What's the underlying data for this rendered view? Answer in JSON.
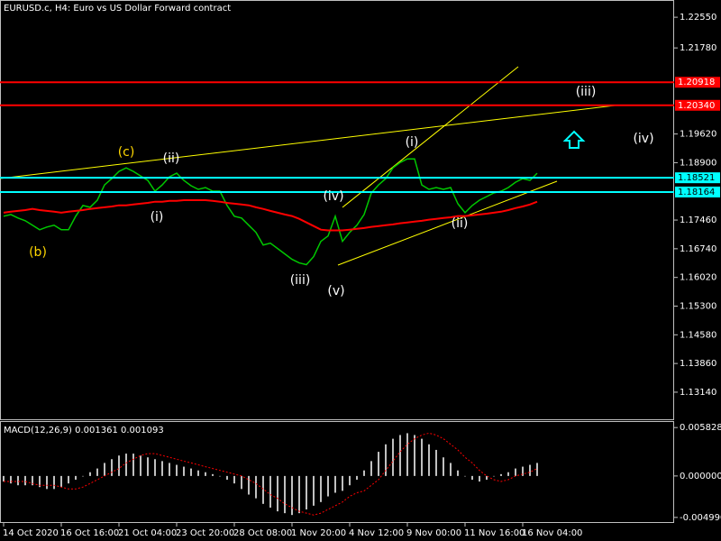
{
  "chart_data": [
    {
      "type": "line",
      "title": "EURUSD.c, H4:  Euro vs US Dollar Forward contract",
      "ylim": [
        1.1246,
        1.2296
      ],
      "yticks": [
        {
          "value": 1.2255,
          "label": "1.22550"
        },
        {
          "value": 1.2178,
          "label": "1.21780"
        },
        {
          "value": 1.1962,
          "label": "1.19620"
        },
        {
          "value": 1.189,
          "label": "1.18900"
        },
        {
          "value": 1.1746,
          "label": "1.17460"
        },
        {
          "value": 1.1674,
          "label": "1.16740"
        },
        {
          "value": 1.1602,
          "label": "1.16020"
        },
        {
          "value": 1.153,
          "label": "1.15300"
        },
        {
          "value": 1.1458,
          "label": "1.14580"
        },
        {
          "value": 1.1386,
          "label": "1.13860"
        },
        {
          "value": 1.1314,
          "label": "1.13140"
        }
      ],
      "grid": false,
      "series": [
        {
          "color": "#00c800",
          "values": [
            1.17555,
            1.176,
            1.1751,
            1.17442,
            1.1733,
            1.17217,
            1.17285,
            1.1733,
            1.17217,
            1.17217,
            1.17555,
            1.17825,
            1.1778,
            1.1796,
            1.18342,
            1.185,
            1.1868,
            1.1877,
            1.1868,
            1.18567,
            1.18455,
            1.18185,
            1.18342,
            1.18545,
            1.18635,
            1.18455,
            1.1832,
            1.1823,
            1.18275,
            1.18185,
            1.18185,
            1.17825,
            1.17555,
            1.1751,
            1.1733,
            1.1715,
            1.16835,
            1.1688,
            1.16745,
            1.1661,
            1.16475,
            1.16385,
            1.1634,
            1.16542,
            1.16925,
            1.1706,
            1.17555,
            1.16925,
            1.1715,
            1.1733,
            1.176,
            1.1814,
            1.18342,
            1.185,
            1.1877,
            1.18905,
            1.18995,
            1.18995,
            1.18342,
            1.1823,
            1.18275,
            1.1823,
            1.18275,
            1.1787,
            1.17645,
            1.17825,
            1.1796,
            1.1805,
            1.1814,
            1.18185,
            1.18275,
            1.1841,
            1.185,
            1.18455,
            1.18635
          ]
        },
        {
          "color": "#ff0000",
          "values": [
            1.17645,
            1.1767,
            1.1769,
            1.1771,
            1.1774,
            1.1771,
            1.1769,
            1.1767,
            1.17645,
            1.1767,
            1.1769,
            1.1771,
            1.1774,
            1.1776,
            1.1778,
            1.178,
            1.1783,
            1.1783,
            1.1785,
            1.1787,
            1.1789,
            1.1792,
            1.1792,
            1.1794,
            1.1794,
            1.1796,
            1.1796,
            1.1796,
            1.1796,
            1.1794,
            1.1792,
            1.1789,
            1.1787,
            1.1785,
            1.1783,
            1.1778,
            1.1774,
            1.1769,
            1.17645,
            1.176,
            1.1756,
            1.1749,
            1.174,
            1.1731,
            1.1722,
            1.172,
            1.172,
            1.172,
            1.1722,
            1.1724,
            1.1726,
            1.1729,
            1.1731,
            1.1733,
            1.1735,
            1.1738,
            1.174,
            1.1742,
            1.1744,
            1.1747,
            1.1749,
            1.1751,
            1.1753,
            1.1756,
            1.1756,
            1.1758,
            1.176,
            1.1762,
            1.17645,
            1.1767,
            1.1771,
            1.1776,
            1.178,
            1.1785,
            1.1792
          ]
        }
      ],
      "levels": [
        {
          "value": 1.20918,
          "label": "1.20918",
          "color": "#ff0000"
        },
        {
          "value": 1.2034,
          "label": "1.20340",
          "color": "#ff0000"
        },
        {
          "value": 1.18521,
          "label": "1.18521",
          "color": "#00ffff"
        },
        {
          "value": 1.18164,
          "label": "1.18164",
          "color": "#00ffff"
        }
      ],
      "annotations": [
        {
          "text": "(b)",
          "color": "#ffd700"
        },
        {
          "text": "(c)",
          "color": "#ffd700"
        },
        {
          "text": "(i)",
          "color": "#ffffff"
        },
        {
          "text": "(ii)",
          "color": "#ffffff"
        },
        {
          "text": "(iii)",
          "color": "#ffffff"
        },
        {
          "text": "(iv)",
          "color": "#ffffff"
        },
        {
          "text": "(v)",
          "color": "#ffffff"
        },
        {
          "text": "(i)",
          "color": "#ffffff"
        },
        {
          "text": "(ii)",
          "color": "#ffffff"
        },
        {
          "text": "(iii)",
          "color": "#ffffff"
        },
        {
          "text": "(iv)",
          "color": "#ffffff"
        }
      ]
    },
    {
      "type": "bar",
      "title": "MACD(12,26,9) 0.001361 0.001093",
      "ylim": [
        -0.00555,
        0.0065
      ],
      "yticks": [
        0.005828,
        {
          "value": 0,
          "label": "0.000000"
        },
        {
          "value": -0.00499,
          "label": "-0.004990"
        }
      ],
      "categories": [
        "14 Oct 2020",
        null,
        null,
        null,
        null,
        null,
        null,
        null,
        "16 Oct 16:00",
        null,
        null,
        null,
        null,
        null,
        null,
        null,
        "21 Oct 04:00",
        null,
        null,
        null,
        null,
        null,
        null,
        null,
        "23 Oct 20:00",
        null,
        null,
        null,
        null,
        null,
        null,
        null,
        "28 Oct 08:00",
        null,
        null,
        null,
        null,
        null,
        null,
        null,
        "1 Nov 20:00",
        null,
        null,
        null,
        null,
        null,
        null,
        null,
        "4 Nov 12:00",
        null,
        null,
        null,
        null,
        null,
        null,
        null,
        "9 Nov 00:00",
        null,
        null,
        null,
        null,
        null,
        null,
        null,
        "11 Nov 16:00",
        null,
        null,
        null,
        null,
        null,
        null,
        null,
        "16 Nov 04:00",
        null,
        null
      ],
      "series": [
        {
          "color": "#c0c0c0",
          "values": [
            -0.00067,
            -0.0009,
            -0.00112,
            -0.00112,
            -0.00112,
            -0.00134,
            -0.00157,
            -0.00157,
            -0.00134,
            -0.0009,
            -0.00045,
            0,
            0.00045,
            0.0009,
            0.00157,
            0.00202,
            0.00246,
            0.00269,
            0.00269,
            0.00246,
            0.00224,
            0.00202,
            0.00179,
            0.00157,
            0.00134,
            0.00112,
            0.0009,
            0.00067,
            0.00045,
            0.00022,
            0,
            -0.00045,
            -0.0009,
            -0.00157,
            -0.00224,
            -0.00269,
            -0.00336,
            -0.00381,
            -0.00426,
            -0.00448,
            -0.0047,
            -0.00448,
            -0.00403,
            -0.00358,
            -0.00314,
            -0.00246,
            -0.00202,
            -0.00179,
            -0.00112,
            -0.00045,
            0.00067,
            0.00179,
            0.00291,
            0.00381,
            0.00448,
            0.00493,
            0.00515,
            0.00493,
            0.00448,
            0.00381,
            0.00314,
            0.00224,
            0.00157,
            0.00067,
            0,
            -0.00045,
            -0.00067,
            -0.00045,
            0,
            0.00022,
            0.00045,
            0.0009,
            0.00112,
            0.00134,
            0.00157
          ]
        },
        {
          "color": "#ff0000",
          "values": [
            -0.00067,
            -0.00067,
            -0.00067,
            -0.00067,
            -0.0009,
            -0.00112,
            -0.00112,
            -0.00112,
            -0.00134,
            -0.00157,
            -0.00157,
            -0.00134,
            -0.0009,
            -0.00045,
            0,
            0.00045,
            0.0009,
            0.00157,
            0.00202,
            0.00246,
            0.00269,
            0.00269,
            0.00246,
            0.00224,
            0.00202,
            0.00179,
            0.00157,
            0.00134,
            0.00112,
            0.0009,
            0.00067,
            0.00045,
            0.00022,
            0,
            -0.00045,
            -0.0009,
            -0.00157,
            -0.00224,
            -0.00269,
            -0.00336,
            -0.00381,
            -0.00426,
            -0.00448,
            -0.0047,
            -0.00448,
            -0.00403,
            -0.00358,
            -0.00314,
            -0.00246,
            -0.00202,
            -0.00179,
            -0.00112,
            -0.00045,
            0.00067,
            0.00179,
            0.00291,
            0.00381,
            0.00448,
            0.00493,
            0.00515,
            0.00493,
            0.00448,
            0.00381,
            0.00314,
            0.00224,
            0.00157,
            0.00067,
            0,
            -0.00045,
            -0.00067,
            -0.00045,
            0,
            0.00022,
            0.00045,
            0.0009
          ]
        }
      ]
    }
  ]
}
